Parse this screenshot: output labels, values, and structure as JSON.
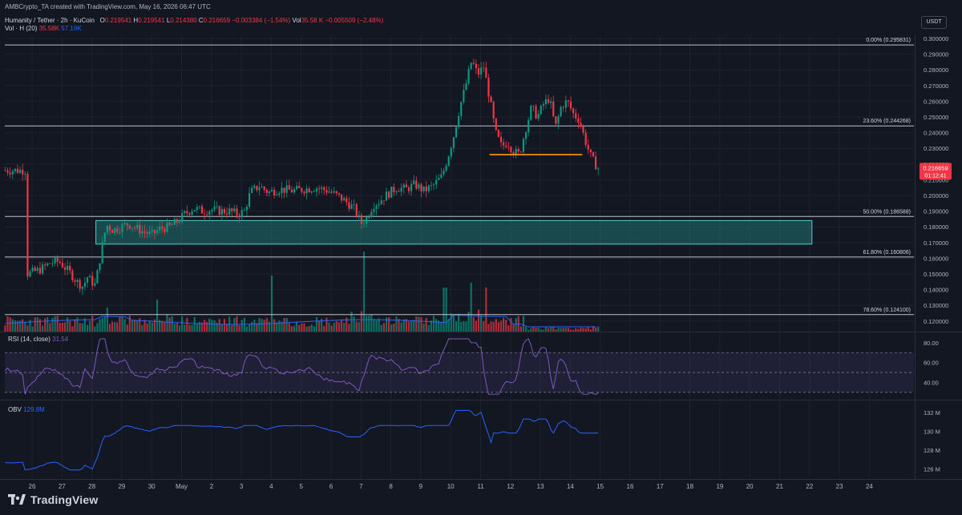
{
  "header": {
    "credit": "AMBCrypto_TA created with TradingView.com, May 16, 2026 06:47 UTC",
    "symbol": "Humanity / Tether · 2h · KuCoin",
    "o_label": "O",
    "o_value": "0.219541",
    "h_label": "H",
    "h_value": "0.219541",
    "l_label": "L",
    "l_value": "0.214380",
    "c_label": "C",
    "c_value": "0.216659",
    "change": "−0.003384 (−1.54%)",
    "vol_label": "Vol",
    "vol_value": "35.58 K",
    "vol_change": "−0.005509 (−2.48%)",
    "volume_indicator": "Vol · H (20)",
    "volume_value": "35.58K",
    "volume_ma": "57.19K"
  },
  "currency_badge": "USDT",
  "chart_data": {
    "type": "candlestick",
    "instrument": "Humanity / Tether",
    "timeframe": "2h",
    "exchange": "KuCoin",
    "y_axis": {
      "ticks": [
        "0.300000",
        "0.290000",
        "0.280000",
        "0.270000",
        "0.260000",
        "0.250000",
        "0.240000",
        "0.230000",
        "0.220000",
        "0.210000",
        "0.200000",
        "0.190000",
        "0.180000",
        "0.170000",
        "0.160000",
        "0.150000",
        "0.140000",
        "0.130000",
        "0.120000"
      ],
      "range": [
        0.117,
        0.3
      ]
    },
    "x_axis": {
      "ticks": [
        "26",
        "27",
        "28",
        "29",
        "30",
        "May",
        "2",
        "3",
        "4",
        "5",
        "6",
        "7",
        "8",
        "9",
        "10",
        "11",
        "12",
        "13",
        "14",
        "15",
        "16",
        "17",
        "18",
        "19",
        "20",
        "21",
        "22",
        "23",
        "24"
      ]
    },
    "current_price": "0.216659",
    "countdown": "01:12:41",
    "fibonacci": [
      {
        "label": "0.00% (0.295831)",
        "value": 0.295831
      },
      {
        "label": "23.60% (0.244268)",
        "value": 0.244268
      },
      {
        "label": "50.00% (0.186588)",
        "value": 0.186588
      },
      {
        "label": "61.80% (0.160806)",
        "value": 0.160806
      },
      {
        "label": "78.60% (0.124100)",
        "value": 0.1241
      }
    ],
    "zones": [
      {
        "x_start": "28",
        "x_end": "22",
        "y_top": 0.184,
        "y_bottom": 0.169,
        "color": "#26a69a"
      }
    ],
    "lines": [
      {
        "x_start": "13.5",
        "x_end": "15.7",
        "value": 0.226,
        "color": "#ff9800"
      }
    ],
    "price_path": [
      [
        -0.2,
        0.15
      ],
      [
        0,
        0.151
      ],
      [
        0.3,
        0.153
      ],
      [
        0.6,
        0.157
      ],
      [
        0.9,
        0.158
      ],
      [
        1.1,
        0.154
      ],
      [
        1.3,
        0.15
      ],
      [
        1.5,
        0.145
      ],
      [
        1.7,
        0.142
      ],
      [
        1.85,
        0.148
      ],
      [
        2.0,
        0.145
      ],
      [
        2.1,
        0.143
      ],
      [
        2.2,
        0.152
      ],
      [
        2.3,
        0.163
      ],
      [
        2.4,
        0.174
      ],
      [
        2.5,
        0.181
      ],
      [
        2.7,
        0.178
      ],
      [
        3.0,
        0.18
      ],
      [
        3.2,
        0.182
      ],
      [
        3.4,
        0.18
      ],
      [
        3.7,
        0.177
      ],
      [
        4.0,
        0.175
      ],
      [
        4.3,
        0.179
      ],
      [
        4.6,
        0.18
      ],
      [
        4.9,
        0.184
      ],
      [
        5.1,
        0.188
      ],
      [
        5.4,
        0.192
      ],
      [
        5.7,
        0.19
      ],
      [
        6.0,
        0.191
      ],
      [
        6.3,
        0.19
      ],
      [
        6.6,
        0.19
      ],
      [
        6.9,
        0.188
      ],
      [
        7.1,
        0.19
      ],
      [
        7.3,
        0.202
      ],
      [
        7.6,
        0.206
      ],
      [
        7.9,
        0.202
      ],
      [
        8.3,
        0.204
      ],
      [
        8.7,
        0.203
      ],
      [
        9.1,
        0.204
      ],
      [
        9.5,
        0.205
      ],
      [
        9.9,
        0.203
      ],
      [
        10.2,
        0.2
      ],
      [
        10.5,
        0.196
      ],
      [
        10.8,
        0.191
      ],
      [
        11.0,
        0.182
      ],
      [
        11.2,
        0.186
      ],
      [
        11.4,
        0.194
      ],
      [
        11.6,
        0.196
      ],
      [
        11.9,
        0.201
      ],
      [
        12.2,
        0.205
      ],
      [
        12.5,
        0.204
      ],
      [
        12.8,
        0.207
      ],
      [
        13.1,
        0.203
      ],
      [
        13.4,
        0.206
      ],
      [
        13.7,
        0.212
      ],
      [
        13.9,
        0.224
      ],
      [
        14.1,
        0.238
      ],
      [
        14.3,
        0.256
      ],
      [
        14.5,
        0.27
      ],
      [
        14.7,
        0.286
      ],
      [
        14.9,
        0.277
      ],
      [
        15.1,
        0.282
      ],
      [
        15.3,
        0.262
      ],
      [
        15.5,
        0.24
      ],
      [
        15.7,
        0.231
      ],
      [
        15.9,
        0.234
      ],
      [
        16.1,
        0.228
      ],
      [
        16.3,
        0.226
      ],
      [
        16.5,
        0.242
      ],
      [
        16.7,
        0.256
      ],
      [
        16.9,
        0.25
      ],
      [
        17.1,
        0.258
      ],
      [
        17.3,
        0.262
      ],
      [
        17.5,
        0.243
      ],
      [
        17.7,
        0.257
      ],
      [
        17.9,
        0.26
      ],
      [
        18.1,
        0.252
      ],
      [
        18.3,
        0.248
      ],
      [
        18.5,
        0.235
      ],
      [
        18.7,
        0.224
      ],
      [
        18.9,
        0.218
      ],
      [
        19.0,
        0.216
      ]
    ],
    "volume_spikes": [
      [
        2.5,
        0.3
      ],
      [
        4.2,
        0.4
      ],
      [
        8.0,
        0.7
      ],
      [
        11.1,
        1.0
      ],
      [
        13.8,
        0.55
      ],
      [
        14.7,
        0.6
      ],
      [
        15.2,
        0.55
      ]
    ],
    "rsi": {
      "label": "RSI (14, close)",
      "value": "31.54",
      "ticks": [
        "80.00",
        "60.00",
        "40.00"
      ],
      "upper": 70,
      "lower": 30
    },
    "obv": {
      "label": "OBV",
      "value": "129.8M",
      "ticks": [
        "132 M",
        "130 M",
        "128 M",
        "126 M"
      ]
    }
  },
  "branding": {
    "name": "TradingView"
  },
  "colors": {
    "up": "#089981",
    "down": "#f23645",
    "rsi": "#7e57c2",
    "obv": "#2962ff",
    "fib": "#d1d4dc"
  }
}
